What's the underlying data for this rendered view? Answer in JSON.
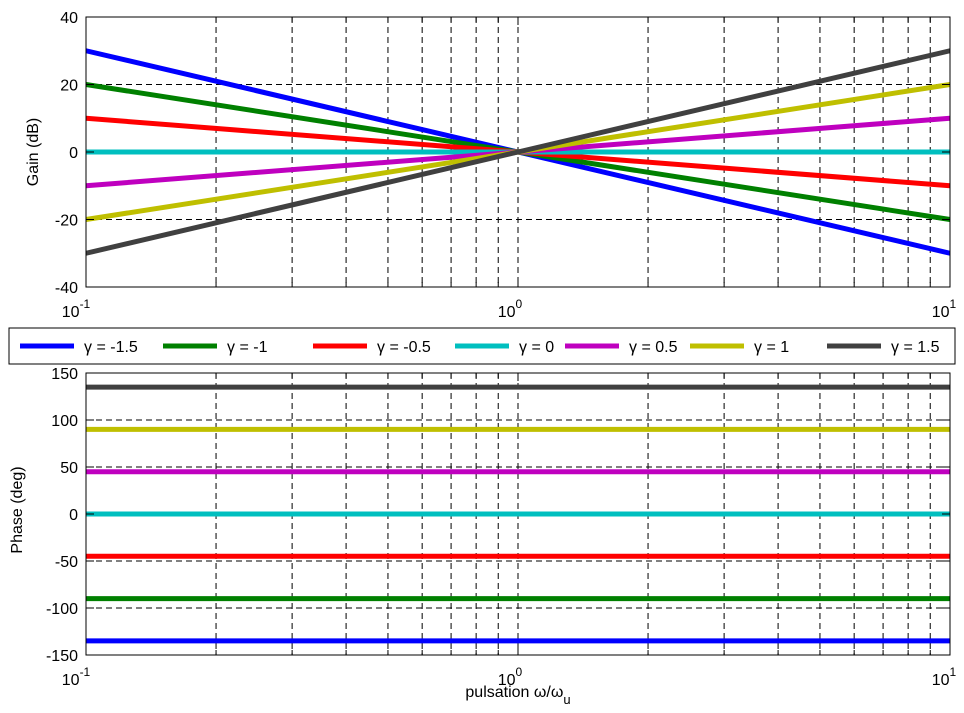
{
  "chart_data": [
    {
      "type": "line",
      "panel": "gain",
      "x_scale": "log",
      "xlim": [
        0.1,
        10
      ],
      "ylim": [
        -40,
        40
      ],
      "ylabel": "Gain (dB)",
      "xlabel": "",
      "grid": true,
      "x_ticks": [
        0.1,
        1,
        10
      ],
      "x_tick_labels": [
        {
          "base": "10",
          "exp": "-1"
        },
        {
          "base": "10",
          "exp": "0"
        },
        {
          "base": "10",
          "exp": "1"
        }
      ],
      "y_ticks": [
        -40,
        -20,
        0,
        20,
        40
      ],
      "y_tick_labels": [
        "-40",
        "-20",
        "0",
        "20",
        "40"
      ],
      "series": [
        {
          "name": "γ = -1.5",
          "color": "#0000ff",
          "x": [
            0.1,
            1,
            10
          ],
          "y": [
            30,
            0,
            -30
          ]
        },
        {
          "name": "γ = -1",
          "color": "#008000",
          "x": [
            0.1,
            1,
            10
          ],
          "y": [
            20,
            0,
            -20
          ]
        },
        {
          "name": "γ = -0.5",
          "color": "#ff0000",
          "x": [
            0.1,
            1,
            10
          ],
          "y": [
            10,
            0,
            -10
          ]
        },
        {
          "name": "γ = 0",
          "color": "#00bfbf",
          "x": [
            0.1,
            1,
            10
          ],
          "y": [
            0,
            0,
            0
          ]
        },
        {
          "name": "γ = 0.5",
          "color": "#bf00bf",
          "x": [
            0.1,
            1,
            10
          ],
          "y": [
            -10,
            0,
            10
          ]
        },
        {
          "name": "γ = 1",
          "color": "#bfbf00",
          "x": [
            0.1,
            1,
            10
          ],
          "y": [
            -20,
            0,
            20
          ]
        },
        {
          "name": "γ = 1.5",
          "color": "#404040",
          "x": [
            0.1,
            1,
            10
          ],
          "y": [
            -30,
            0,
            30
          ]
        }
      ]
    },
    {
      "type": "line",
      "panel": "phase",
      "x_scale": "log",
      "xlim": [
        0.1,
        10
      ],
      "ylim": [
        -150,
        150
      ],
      "ylabel": "Phase (deg)",
      "xlabel": {
        "prefix": "pulsation ",
        "omega": "ω",
        "slash": "/",
        "sub": "u"
      },
      "grid": true,
      "x_ticks": [
        0.1,
        1,
        10
      ],
      "x_tick_labels": [
        {
          "base": "10",
          "exp": "-1"
        },
        {
          "base": "10",
          "exp": "0"
        },
        {
          "base": "10",
          "exp": "1"
        }
      ],
      "y_ticks": [
        -150,
        -100,
        -50,
        0,
        50,
        100,
        150
      ],
      "y_tick_labels": [
        "-150",
        "-100",
        "-50",
        "0",
        "50",
        "100",
        "150"
      ],
      "series": [
        {
          "name": "γ = -1.5",
          "color": "#0000ff",
          "x": [
            0.1,
            10
          ],
          "y": [
            -135,
            -135
          ]
        },
        {
          "name": "γ = -1",
          "color": "#008000",
          "x": [
            0.1,
            10
          ],
          "y": [
            -90,
            -90
          ]
        },
        {
          "name": "γ = -0.5",
          "color": "#ff0000",
          "x": [
            0.1,
            10
          ],
          "y": [
            -45,
            -45
          ]
        },
        {
          "name": "γ = 0",
          "color": "#00bfbf",
          "x": [
            0.1,
            10
          ],
          "y": [
            0,
            0
          ]
        },
        {
          "name": "γ = 0.5",
          "color": "#bf00bf",
          "x": [
            0.1,
            10
          ],
          "y": [
            45,
            45
          ]
        },
        {
          "name": "γ = 1",
          "color": "#bfbf00",
          "x": [
            0.1,
            10
          ],
          "y": [
            90,
            90
          ]
        },
        {
          "name": "γ = 1.5",
          "color": "#404040",
          "x": [
            0.1,
            10
          ],
          "y": [
            135,
            135
          ]
        }
      ]
    }
  ],
  "legend": {
    "placement": "between panels",
    "entries": [
      {
        "label": "γ = -1.5",
        "color": "#0000ff"
      },
      {
        "label": "γ = -1",
        "color": "#008000"
      },
      {
        "label": "γ = -0.5",
        "color": "#ff0000"
      },
      {
        "label": "γ = 0",
        "color": "#00bfbf"
      },
      {
        "label": "γ = 0.5",
        "color": "#bf00bf"
      },
      {
        "label": "γ = 1",
        "color": "#bfbf00"
      },
      {
        "label": "γ = 1.5",
        "color": "#404040"
      }
    ]
  }
}
